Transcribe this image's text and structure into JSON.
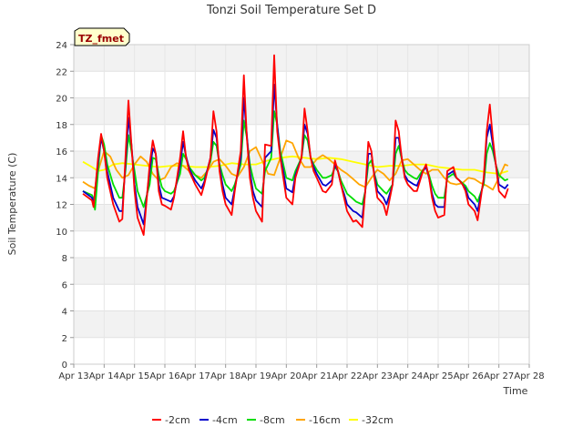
{
  "chart_data": {
    "type": "line",
    "title": "Tonzi Soil Temperature Set D",
    "xlabel": "Time",
    "ylabel": "Soil Temperature (C)",
    "annotation": "TZ_fmet",
    "xlim": [
      13,
      28
    ],
    "ylim": [
      0,
      24
    ],
    "x_ticks": [
      {
        "value": 13,
        "label": "Apr 13"
      },
      {
        "value": 14,
        "label": "Apr 14"
      },
      {
        "value": 15,
        "label": "Apr 15"
      },
      {
        "value": 16,
        "label": "Apr 16"
      },
      {
        "value": 17,
        "label": "Apr 17"
      },
      {
        "value": 18,
        "label": "Apr 18"
      },
      {
        "value": 19,
        "label": "Apr 19"
      },
      {
        "value": 20,
        "label": "Apr 20"
      },
      {
        "value": 21,
        "label": "Apr 21"
      },
      {
        "value": 22,
        "label": "Apr 22"
      },
      {
        "value": 23,
        "label": "Apr 23"
      },
      {
        "value": 24,
        "label": "Apr 24"
      },
      {
        "value": 25,
        "label": "Apr 25"
      },
      {
        "value": 26,
        "label": "Apr 26"
      },
      {
        "value": 27,
        "label": "Apr 27"
      },
      {
        "value": 28,
        "label": "Apr 28"
      }
    ],
    "y_ticks": [
      0,
      2,
      4,
      6,
      8,
      10,
      12,
      14,
      16,
      18,
      20,
      22,
      24
    ],
    "series": [
      {
        "name": "-2cm",
        "color": "#ff0000",
        "x": [
          13.3,
          13.6,
          13.65,
          13.7,
          13.8,
          13.9,
          14.0,
          14.1,
          14.3,
          14.5,
          14.6,
          14.7,
          14.8,
          14.9,
          15.0,
          15.1,
          15.3,
          15.5,
          15.6,
          15.7,
          15.8,
          15.9,
          16.0,
          16.2,
          16.3,
          16.5,
          16.6,
          16.7,
          16.8,
          16.9,
          17.0,
          17.2,
          17.3,
          17.5,
          17.6,
          17.7,
          17.8,
          17.9,
          18.0,
          18.2,
          18.3,
          18.5,
          18.6,
          18.7,
          18.8,
          18.9,
          19.0,
          19.2,
          19.3,
          19.5,
          19.6,
          19.7,
          19.8,
          19.9,
          20.0,
          20.2,
          20.3,
          20.5,
          20.6,
          20.7,
          20.8,
          20.9,
          21.0,
          21.2,
          21.3,
          21.5,
          21.6,
          21.7,
          21.8,
          21.9,
          22.0,
          22.2,
          22.3,
          22.5,
          22.6,
          22.7,
          22.8,
          22.9,
          23.0,
          23.2,
          23.3,
          23.5,
          23.6,
          23.7,
          23.8,
          23.9,
          24.0,
          24.2,
          24.3,
          24.5,
          24.6,
          24.7,
          24.8,
          24.9,
          25.0,
          25.2,
          25.3,
          25.5,
          25.6,
          25.7,
          25.8,
          25.9,
          26.0,
          26.2,
          26.3,
          26.5,
          26.6,
          26.7,
          26.8,
          26.9,
          27.0,
          27.2,
          27.3
        ],
        "y": [
          12.8,
          12.3,
          11.8,
          13.0,
          15.5,
          17.3,
          16.0,
          14.0,
          12.0,
          10.7,
          10.9,
          15.5,
          19.8,
          16.5,
          13.0,
          11.0,
          9.7,
          15.0,
          16.8,
          15.8,
          13.0,
          12.0,
          11.9,
          11.6,
          12.5,
          15.5,
          17.5,
          15.5,
          14.5,
          14.0,
          13.5,
          12.7,
          13.5,
          15.5,
          19.0,
          17.5,
          14.5,
          13.0,
          12.0,
          11.2,
          13.0,
          16.0,
          21.7,
          17.0,
          14.0,
          12.5,
          11.5,
          10.7,
          16.5,
          16.4,
          23.2,
          17.5,
          15.5,
          14.0,
          12.5,
          12.0,
          14.0,
          15.5,
          19.2,
          17.5,
          15.5,
          14.5,
          14.0,
          13.0,
          12.9,
          13.5,
          15.3,
          14.5,
          13.5,
          12.5,
          11.5,
          10.7,
          10.8,
          10.3,
          13.0,
          16.7,
          16.0,
          14.0,
          12.5,
          12.0,
          11.2,
          13.5,
          18.3,
          17.5,
          15.5,
          14.0,
          13.5,
          13.0,
          13.0,
          14.5,
          15.0,
          14.0,
          12.5,
          11.5,
          11.0,
          11.2,
          14.5,
          14.8,
          14.0,
          13.8,
          13.5,
          13.0,
          12.0,
          11.5,
          10.8,
          14.0,
          17.5,
          19.5,
          17.0,
          15.0,
          13.0,
          12.5,
          13.2
        ]
      },
      {
        "name": "-4cm",
        "color": "#0000cc",
        "x": [
          13.3,
          13.6,
          13.65,
          13.7,
          13.8,
          13.9,
          14.0,
          14.1,
          14.3,
          14.5,
          14.6,
          14.7,
          14.8,
          14.9,
          15.0,
          15.1,
          15.3,
          15.5,
          15.6,
          15.7,
          15.8,
          15.9,
          16.0,
          16.2,
          16.3,
          16.5,
          16.6,
          16.7,
          16.8,
          16.9,
          17.0,
          17.2,
          17.3,
          17.5,
          17.6,
          17.7,
          17.8,
          17.9,
          18.0,
          18.2,
          18.3,
          18.5,
          18.6,
          18.7,
          18.8,
          18.9,
          19.0,
          19.2,
          19.3,
          19.5,
          19.6,
          19.7,
          19.8,
          19.9,
          20.0,
          20.2,
          20.3,
          20.5,
          20.6,
          20.7,
          20.8,
          20.9,
          21.0,
          21.2,
          21.3,
          21.5,
          21.6,
          21.7,
          21.8,
          21.9,
          22.0,
          22.2,
          22.3,
          22.5,
          22.6,
          22.7,
          22.8,
          22.9,
          23.0,
          23.2,
          23.3,
          23.5,
          23.6,
          23.7,
          23.8,
          23.9,
          24.0,
          24.2,
          24.3,
          24.5,
          24.6,
          24.7,
          24.8,
          24.9,
          25.0,
          25.2,
          25.3,
          25.5,
          25.6,
          25.7,
          25.8,
          25.9,
          26.0,
          26.2,
          26.3,
          26.5,
          26.6,
          26.7,
          26.8,
          26.9,
          27.0,
          27.2,
          27.3
        ],
        "y": [
          13.0,
          12.5,
          12.0,
          13.0,
          15.2,
          17.0,
          16.0,
          14.5,
          12.5,
          11.5,
          11.5,
          15.0,
          18.5,
          16.5,
          13.5,
          11.8,
          10.5,
          14.5,
          16.2,
          15.8,
          13.5,
          12.5,
          12.4,
          12.2,
          12.6,
          15.0,
          16.7,
          15.6,
          14.7,
          14.2,
          13.8,
          13.2,
          13.7,
          15.5,
          17.6,
          17.0,
          14.8,
          13.5,
          12.5,
          12.0,
          13.2,
          15.5,
          20.0,
          17.2,
          14.5,
          13.0,
          12.3,
          11.8,
          15.5,
          16.0,
          21.0,
          18.0,
          15.6,
          14.5,
          13.2,
          12.9,
          14.2,
          15.5,
          18.0,
          17.3,
          15.5,
          14.8,
          14.3,
          13.5,
          13.4,
          13.8,
          15.0,
          14.5,
          13.5,
          12.8,
          12.0,
          11.5,
          11.4,
          11.0,
          13.0,
          15.8,
          15.8,
          14.2,
          13.0,
          12.5,
          12.0,
          13.5,
          17.0,
          17.0,
          15.5,
          14.2,
          13.8,
          13.5,
          13.4,
          14.5,
          14.8,
          14.0,
          12.8,
          12.0,
          11.8,
          11.8,
          14.2,
          14.5,
          14.0,
          13.8,
          13.5,
          13.2,
          12.5,
          12.0,
          11.5,
          13.8,
          17.0,
          18.0,
          16.5,
          15.0,
          13.5,
          13.2,
          13.5
        ]
      },
      {
        "name": "-8cm",
        "color": "#00dd00",
        "x": [
          13.3,
          13.6,
          13.65,
          13.7,
          13.8,
          13.9,
          14.0,
          14.1,
          14.3,
          14.5,
          14.6,
          14.7,
          14.8,
          14.9,
          15.0,
          15.1,
          15.3,
          15.5,
          15.6,
          15.7,
          15.8,
          15.9,
          16.0,
          16.2,
          16.3,
          16.5,
          16.6,
          16.7,
          16.8,
          16.9,
          17.0,
          17.2,
          17.3,
          17.5,
          17.6,
          17.7,
          17.8,
          17.9,
          18.0,
          18.2,
          18.3,
          18.5,
          18.6,
          18.7,
          18.8,
          18.9,
          19.0,
          19.2,
          19.3,
          19.5,
          19.6,
          19.7,
          19.8,
          19.9,
          20.0,
          20.2,
          20.3,
          20.5,
          20.6,
          20.7,
          20.8,
          20.9,
          21.0,
          21.2,
          21.3,
          21.5,
          21.6,
          21.7,
          21.8,
          21.9,
          22.0,
          22.2,
          22.3,
          22.5,
          22.6,
          22.7,
          22.8,
          22.9,
          23.0,
          23.2,
          23.3,
          23.5,
          23.6,
          23.7,
          23.8,
          23.9,
          24.0,
          24.2,
          24.3,
          24.5,
          24.6,
          24.7,
          24.8,
          24.9,
          25.0,
          25.2,
          25.3,
          25.5,
          25.6,
          25.7,
          25.8,
          25.9,
          26.0,
          26.2,
          26.3,
          26.5,
          26.6,
          26.7,
          26.8,
          26.9,
          27.0,
          27.2,
          27.3
        ],
        "y": [
          13.0,
          12.7,
          12.3,
          11.6,
          14.5,
          17.2,
          16.5,
          15.0,
          13.5,
          12.5,
          12.5,
          14.5,
          17.2,
          16.0,
          14.5,
          13.0,
          11.8,
          13.5,
          15.5,
          15.4,
          14.2,
          13.3,
          13.0,
          12.8,
          13.0,
          14.3,
          15.8,
          15.4,
          14.8,
          14.5,
          14.2,
          13.8,
          14.0,
          15.2,
          16.7,
          16.4,
          15.0,
          14.2,
          13.5,
          13.0,
          13.5,
          15.0,
          18.3,
          17.0,
          15.0,
          14.0,
          13.2,
          12.8,
          14.5,
          15.5,
          19.0,
          18.0,
          16.0,
          15.0,
          14.0,
          13.8,
          14.5,
          15.5,
          17.2,
          16.8,
          15.5,
          15.0,
          14.6,
          14.0,
          14.0,
          14.2,
          14.8,
          14.5,
          13.8,
          13.3,
          12.8,
          12.4,
          12.2,
          12.0,
          13.0,
          15.0,
          15.3,
          14.3,
          13.5,
          13.0,
          12.8,
          13.5,
          15.8,
          16.4,
          15.4,
          14.6,
          14.3,
          14.0,
          13.9,
          14.6,
          14.8,
          14.2,
          13.4,
          12.8,
          12.5,
          12.5,
          14.0,
          14.3,
          14.0,
          13.8,
          13.6,
          13.4,
          13.0,
          12.6,
          12.2,
          13.5,
          15.8,
          16.6,
          16.0,
          15.0,
          14.2,
          13.8,
          13.9
        ]
      },
      {
        "name": "-16cm",
        "color": "#ffa500",
        "x": [
          13.3,
          13.5,
          13.6,
          13.7,
          13.8,
          14.0,
          14.2,
          14.4,
          14.6,
          14.8,
          15.0,
          15.2,
          15.4,
          15.6,
          15.8,
          16.0,
          16.2,
          16.4,
          16.6,
          16.8,
          17.0,
          17.2,
          17.4,
          17.6,
          17.8,
          18.0,
          18.2,
          18.4,
          18.6,
          18.8,
          19.0,
          19.2,
          19.4,
          19.6,
          19.8,
          20.0,
          20.2,
          20.4,
          20.6,
          20.8,
          21.0,
          21.2,
          21.4,
          21.6,
          21.8,
          22.0,
          22.2,
          22.4,
          22.6,
          22.8,
          23.0,
          23.2,
          23.4,
          23.6,
          23.8,
          24.0,
          24.2,
          24.4,
          24.6,
          24.8,
          25.0,
          25.2,
          25.4,
          25.6,
          25.8,
          26.0,
          26.2,
          26.4,
          26.6,
          26.8,
          27.0,
          27.2,
          27.3
        ],
        "y": [
          13.7,
          13.4,
          13.3,
          13.2,
          14.5,
          16.0,
          15.6,
          14.6,
          14.0,
          14.2,
          15.0,
          15.6,
          15.2,
          14.3,
          13.8,
          14.0,
          14.8,
          15.1,
          14.9,
          14.5,
          14.2,
          14.0,
          14.5,
          15.2,
          15.4,
          14.9,
          14.3,
          14.1,
          14.8,
          16.0,
          16.3,
          15.3,
          14.3,
          14.2,
          15.5,
          16.8,
          16.6,
          15.5,
          14.8,
          14.8,
          15.4,
          15.7,
          15.4,
          15.0,
          14.6,
          14.3,
          13.9,
          13.5,
          13.3,
          14.0,
          14.6,
          14.3,
          13.8,
          14.3,
          15.3,
          15.4,
          15.0,
          14.6,
          14.3,
          14.6,
          14.6,
          14.0,
          13.6,
          13.5,
          13.6,
          14.0,
          13.9,
          13.6,
          13.4,
          13.1,
          14.0,
          15.0,
          14.9
        ]
      },
      {
        "name": "-32cm",
        "color": "#ffff00",
        "x": [
          13.3,
          13.6,
          13.8,
          14.0,
          14.3,
          14.6,
          15.0,
          15.4,
          15.8,
          16.2,
          16.6,
          17.0,
          17.4,
          17.8,
          18.2,
          18.6,
          19.0,
          19.4,
          19.8,
          20.2,
          20.6,
          21.0,
          21.4,
          21.8,
          22.2,
          22.6,
          23.0,
          23.4,
          23.8,
          24.2,
          24.6,
          25.0,
          25.4,
          25.8,
          26.2,
          26.6,
          27.0,
          27.3
        ],
        "y": [
          15.2,
          14.8,
          14.5,
          14.6,
          15.0,
          15.1,
          15.0,
          14.9,
          14.8,
          14.9,
          14.9,
          14.8,
          14.8,
          14.9,
          15.1,
          15.0,
          15.0,
          15.3,
          15.5,
          15.6,
          15.5,
          15.4,
          15.5,
          15.4,
          15.2,
          15.0,
          14.8,
          14.9,
          14.9,
          15.0,
          15.0,
          14.8,
          14.7,
          14.6,
          14.6,
          14.4,
          14.3,
          14.5
        ]
      }
    ]
  }
}
